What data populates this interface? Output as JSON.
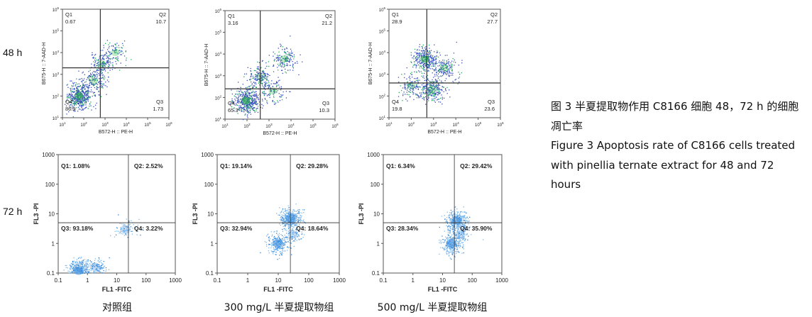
{
  "row_labels": [
    "48 h",
    "72 h"
  ],
  "group_labels": [
    "对照组",
    "300 mg/L 半夏提取物组",
    "500 mg/L 半夏提取物组"
  ],
  "caption": {
    "zh": "图 3 半夏提取物作用 C8166 细胞 48，72 h 的细胞凋亡率",
    "en": "Figure 3 Apoptosis rate of C8166 cells treated with pinellia ternate extract for 48 and 72 hours"
  },
  "chart_data": [
    {
      "type": "scatter",
      "name": "48 h 对照组",
      "xlabel": "B572-H :: PE-H",
      "ylabel": "B675-H :: 7-AAD-H",
      "xlim": [
        10,
        1000000
      ],
      "ylim": [
        10,
        1000000
      ],
      "log": true,
      "x_ticks": [
        "10^1",
        "10^2",
        "10^3",
        "10^4",
        "10^5",
        "10^6"
      ],
      "y_ticks": [
        "10^1",
        "10^2",
        "10^3",
        "10^4",
        "10^5",
        "10^6"
      ],
      "gate": [
        600,
        2000
      ],
      "quadrants": {
        "Q1": "0.67",
        "Q2": "10.7",
        "Q3": "1.73",
        "Q4": "86.9"
      },
      "clusters": [
        {
          "x": 60,
          "y": 100,
          "weight": 0.55
        },
        {
          "x": 700,
          "y": 3000,
          "weight": 0.18
        },
        {
          "x": 300,
          "y": 500,
          "weight": 0.17
        },
        {
          "x": 3000,
          "y": 10000,
          "weight": 0.1
        }
      ]
    },
    {
      "type": "scatter",
      "name": "48 h 300 mg/L",
      "xlabel": "B572-H :: PE-H",
      "ylabel": "B675-H :: 7-AAD-H",
      "xlim": [
        10,
        1000000
      ],
      "ylim": [
        10,
        1000000
      ],
      "log": true,
      "x_ticks": [
        "10^1",
        "10^2",
        "10^3",
        "10^4",
        "10^5",
        "10^6"
      ],
      "y_ticks": [
        "10^1",
        "10^2",
        "10^3",
        "10^4",
        "10^5",
        "10^6"
      ],
      "gate": [
        400,
        250
      ],
      "quadrants": {
        "Q1": "3.16",
        "Q2": "21.2",
        "Q3": "10.3",
        "Q4": "65.3"
      },
      "clusters": [
        {
          "x": 90,
          "y": 70,
          "weight": 0.5
        },
        {
          "x": 400,
          "y": 900,
          "weight": 0.2
        },
        {
          "x": 1500,
          "y": 200,
          "weight": 0.12
        },
        {
          "x": 5000,
          "y": 6000,
          "weight": 0.18
        }
      ]
    },
    {
      "type": "scatter",
      "name": "48 h 500 mg/L",
      "xlabel": "B572-H :: PE-H",
      "ylabel": "B675-H :: 7-AAD-H",
      "xlim": [
        10,
        1000000
      ],
      "ylim": [
        10,
        1000000
      ],
      "log": true,
      "x_ticks": [
        "10^1",
        "10^2",
        "10^3",
        "10^4",
        "10^5",
        "10^6"
      ],
      "y_ticks": [
        "10^1",
        "10^2",
        "10^3",
        "10^4",
        "10^5",
        "10^6"
      ],
      "gate": [
        500,
        400
      ],
      "quadrants": {
        "Q1": "28.9",
        "Q2": "27.7",
        "Q3": "23.6",
        "Q4": "19.8"
      },
      "clusters": [
        {
          "x": 400,
          "y": 5000,
          "weight": 0.35
        },
        {
          "x": 900,
          "y": 200,
          "weight": 0.3
        },
        {
          "x": 100,
          "y": 300,
          "weight": 0.15
        },
        {
          "x": 3000,
          "y": 2000,
          "weight": 0.2
        }
      ]
    },
    {
      "type": "scatter",
      "name": "72 h 对照组",
      "xlabel": "FL1 -FITC",
      "ylabel": "FL3 -PI",
      "xlim": [
        0.1,
        1000
      ],
      "ylim": [
        0.1,
        1000
      ],
      "log": true,
      "x_ticks": [
        "0.1",
        "1",
        "10",
        "100",
        "1000"
      ],
      "y_ticks": [
        "0.1",
        "1",
        "10",
        "100",
        "1000"
      ],
      "gate": [
        25,
        5
      ],
      "quadrants": {
        "Q1": "1.08%",
        "Q2": "2.52%",
        "Q3": "93.18%",
        "Q4": "3.22%"
      },
      "clusters": [
        {
          "x": 0.5,
          "y": 0.12,
          "weight": 0.7
        },
        {
          "x": 2,
          "y": 0.15,
          "weight": 0.2
        },
        {
          "x": 20,
          "y": 3,
          "weight": 0.1
        }
      ]
    },
    {
      "type": "scatter",
      "name": "72 h 300 mg/L",
      "xlabel": "FL1 -FITC",
      "ylabel": "FL3 -PI",
      "xlim": [
        0.1,
        1000
      ],
      "ylim": [
        0.1,
        1000
      ],
      "log": true,
      "x_ticks": [
        "0.1",
        "1",
        "10",
        "100",
        "1000"
      ],
      "y_ticks": [
        "0.1",
        "1",
        "10",
        "100",
        "1000"
      ],
      "gate": [
        25,
        5
      ],
      "quadrants": {
        "Q1": "19.14%",
        "Q2": "29.28%",
        "Q3": "32.94%",
        "Q4": "18.64%"
      },
      "clusters": [
        {
          "x": 25,
          "y": 7,
          "weight": 0.55
        },
        {
          "x": 10,
          "y": 1,
          "weight": 0.35
        },
        {
          "x": 30,
          "y": 2,
          "weight": 0.1
        }
      ]
    },
    {
      "type": "scatter",
      "name": "72 h 500 mg/L",
      "xlabel": "FL1 -FITC",
      "ylabel": "FL3 -PI",
      "xlim": [
        0.1,
        1000
      ],
      "ylim": [
        0.1,
        1000
      ],
      "log": true,
      "x_ticks": [
        "0.1",
        "1",
        "10",
        "100",
        "1000"
      ],
      "y_ticks": [
        "0.1",
        "1",
        "10",
        "100",
        "1000"
      ],
      "gate": [
        25,
        5
      ],
      "quadrants": {
        "Q1": "6.34%",
        "Q2": "29.42%",
        "Q3": "28.34%",
        "Q4": "35.90%"
      },
      "clusters": [
        {
          "x": 30,
          "y": 6,
          "weight": 0.5
        },
        {
          "x": 20,
          "y": 1,
          "weight": 0.4
        },
        {
          "x": 40,
          "y": 2,
          "weight": 0.1
        }
      ]
    }
  ]
}
